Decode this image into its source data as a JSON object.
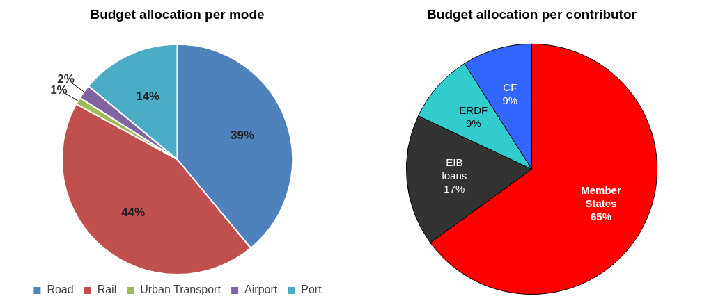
{
  "chart_data": [
    {
      "type": "pie",
      "title": "Budget allocation per mode",
      "categories": [
        "Road",
        "Rail",
        "Urban Transport",
        "Airport",
        "Port"
      ],
      "values": [
        39,
        44,
        1,
        2,
        14
      ],
      "colors": [
        "#4f81bd",
        "#c0504d",
        "#9bbb59",
        "#8064a2",
        "#4bacc6"
      ],
      "value_labels": [
        "39%",
        "44%",
        "1%",
        "2%",
        "14%"
      ],
      "legend": "bottom"
    },
    {
      "type": "pie",
      "title": "Budget allocation per contributor",
      "categories": [
        "Member States",
        "EIB loans",
        "ERDF",
        "CF"
      ],
      "values": [
        65,
        17,
        9,
        9
      ],
      "colors": [
        "#ff0000",
        "#333333",
        "#33cccc",
        "#3366ff"
      ],
      "value_labels": [
        "65%",
        "17%",
        "9%",
        "9%"
      ]
    }
  ]
}
